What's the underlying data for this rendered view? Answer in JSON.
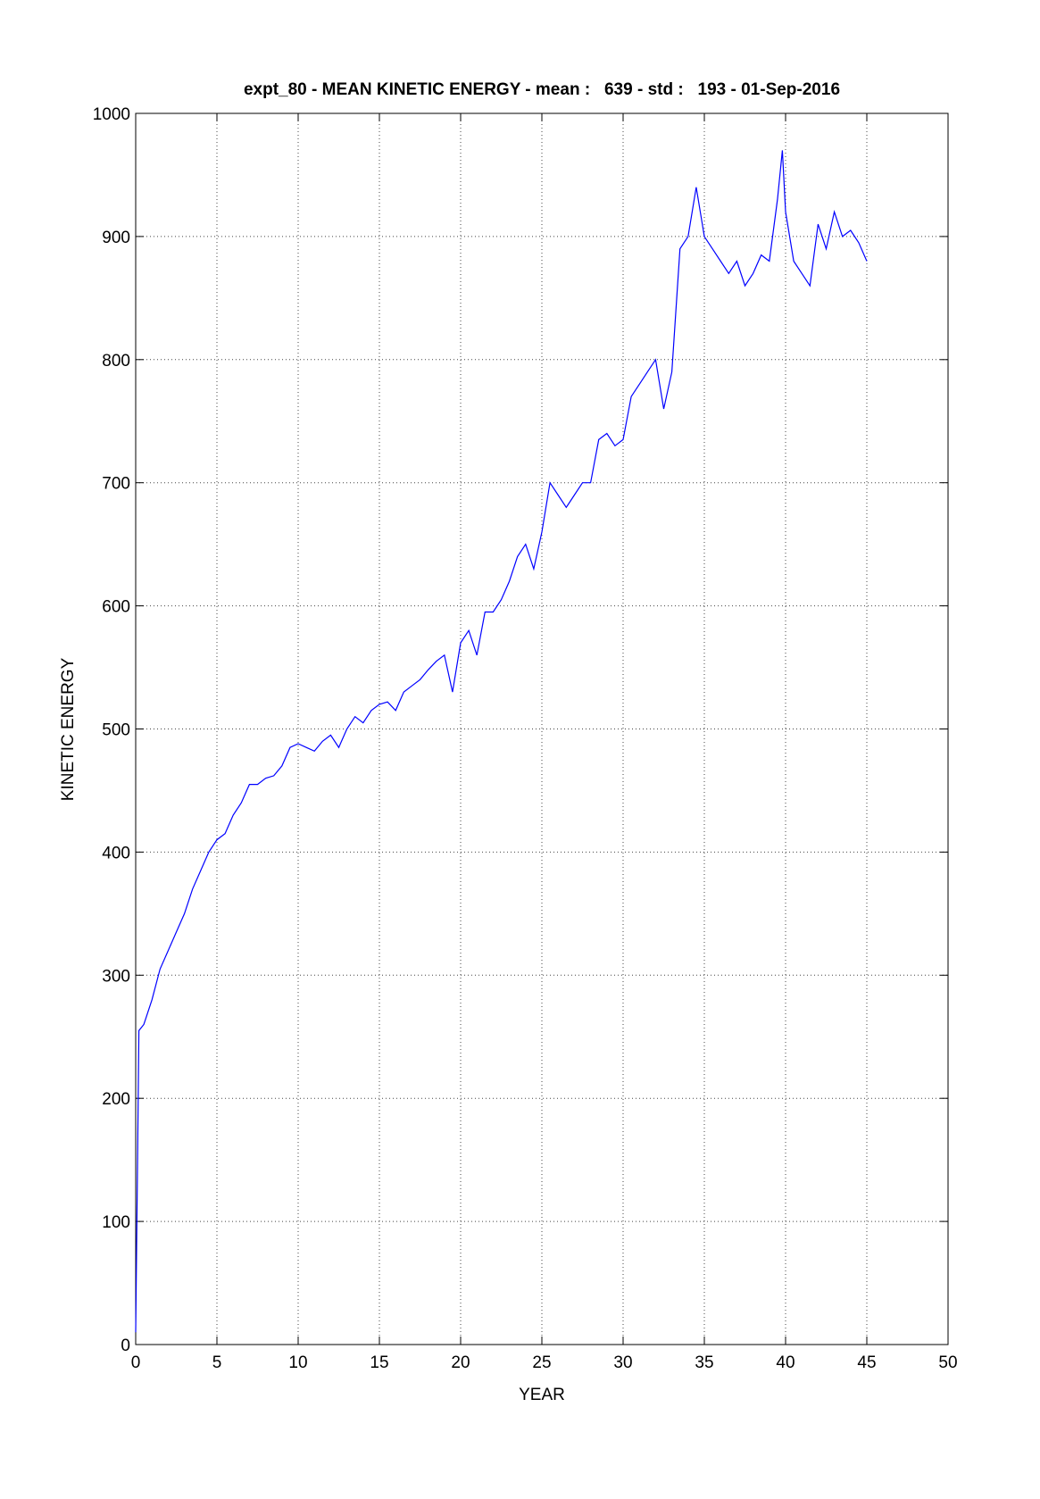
{
  "chart_data": {
    "type": "line",
    "title": "expt_80 - MEAN KINETIC ENERGY - mean :   639 - std :   193 - 01-Sep-2016",
    "x_label": "YEAR",
    "y_label": "KINETIC ENERGY",
    "xlim": [
      0,
      50
    ],
    "xticks": [
      0,
      5,
      10,
      15,
      20,
      25,
      30,
      35,
      40,
      45,
      50
    ],
    "ylim": [
      0,
      1000
    ],
    "yticks": [
      0,
      100,
      200,
      300,
      400,
      500,
      600,
      700,
      800,
      900,
      1000
    ],
    "grid": true,
    "series": [
      {
        "name": "KINETIC ENERGY",
        "color": "#0000ff",
        "x": [
          0,
          0.1,
          0.2,
          0.5,
          1,
          1.5,
          2,
          2.5,
          3,
          3.5,
          4,
          4.5,
          5,
          5.5,
          6,
          6.5,
          7,
          7.5,
          8,
          8.5,
          9,
          9.5,
          10,
          10.5,
          11,
          11.5,
          12,
          12.5,
          13,
          13.5,
          14,
          14.5,
          15,
          15.5,
          16,
          16.5,
          17,
          17.5,
          18,
          18.5,
          19,
          19.5,
          20,
          20.5,
          21,
          21.5,
          22,
          22.5,
          23,
          23.5,
          24,
          24.5,
          25,
          25.5,
          26,
          26.5,
          27,
          27.5,
          28,
          28.5,
          29,
          29.5,
          30,
          30.5,
          31,
          31.5,
          32,
          32.5,
          33,
          33.5,
          34,
          34.5,
          35,
          35.5,
          36,
          36.5,
          37,
          37.5,
          38,
          38.5,
          39,
          39.5,
          39.8,
          40,
          40.5,
          41,
          41.5,
          42,
          42.5,
          43,
          43.5,
          44,
          44.5,
          45
        ],
        "values": [
          10,
          130,
          255,
          260,
          280,
          305,
          320,
          335,
          350,
          370,
          385,
          400,
          410,
          415,
          430,
          440,
          455,
          455,
          460,
          462,
          470,
          485,
          488,
          485,
          482,
          490,
          495,
          485,
          500,
          510,
          505,
          515,
          520,
          522,
          515,
          530,
          535,
          540,
          548,
          555,
          560,
          530,
          570,
          580,
          560,
          595,
          595,
          605,
          620,
          640,
          650,
          630,
          660,
          700,
          690,
          680,
          690,
          700,
          700,
          735,
          740,
          730,
          735,
          770,
          780,
          790,
          800,
          760,
          790,
          890,
          900,
          940,
          900,
          890,
          880,
          870,
          880,
          860,
          870,
          885,
          880,
          930,
          970,
          920,
          880,
          870,
          860,
          910,
          890,
          920,
          900,
          905,
          895,
          880
        ]
      }
    ]
  }
}
